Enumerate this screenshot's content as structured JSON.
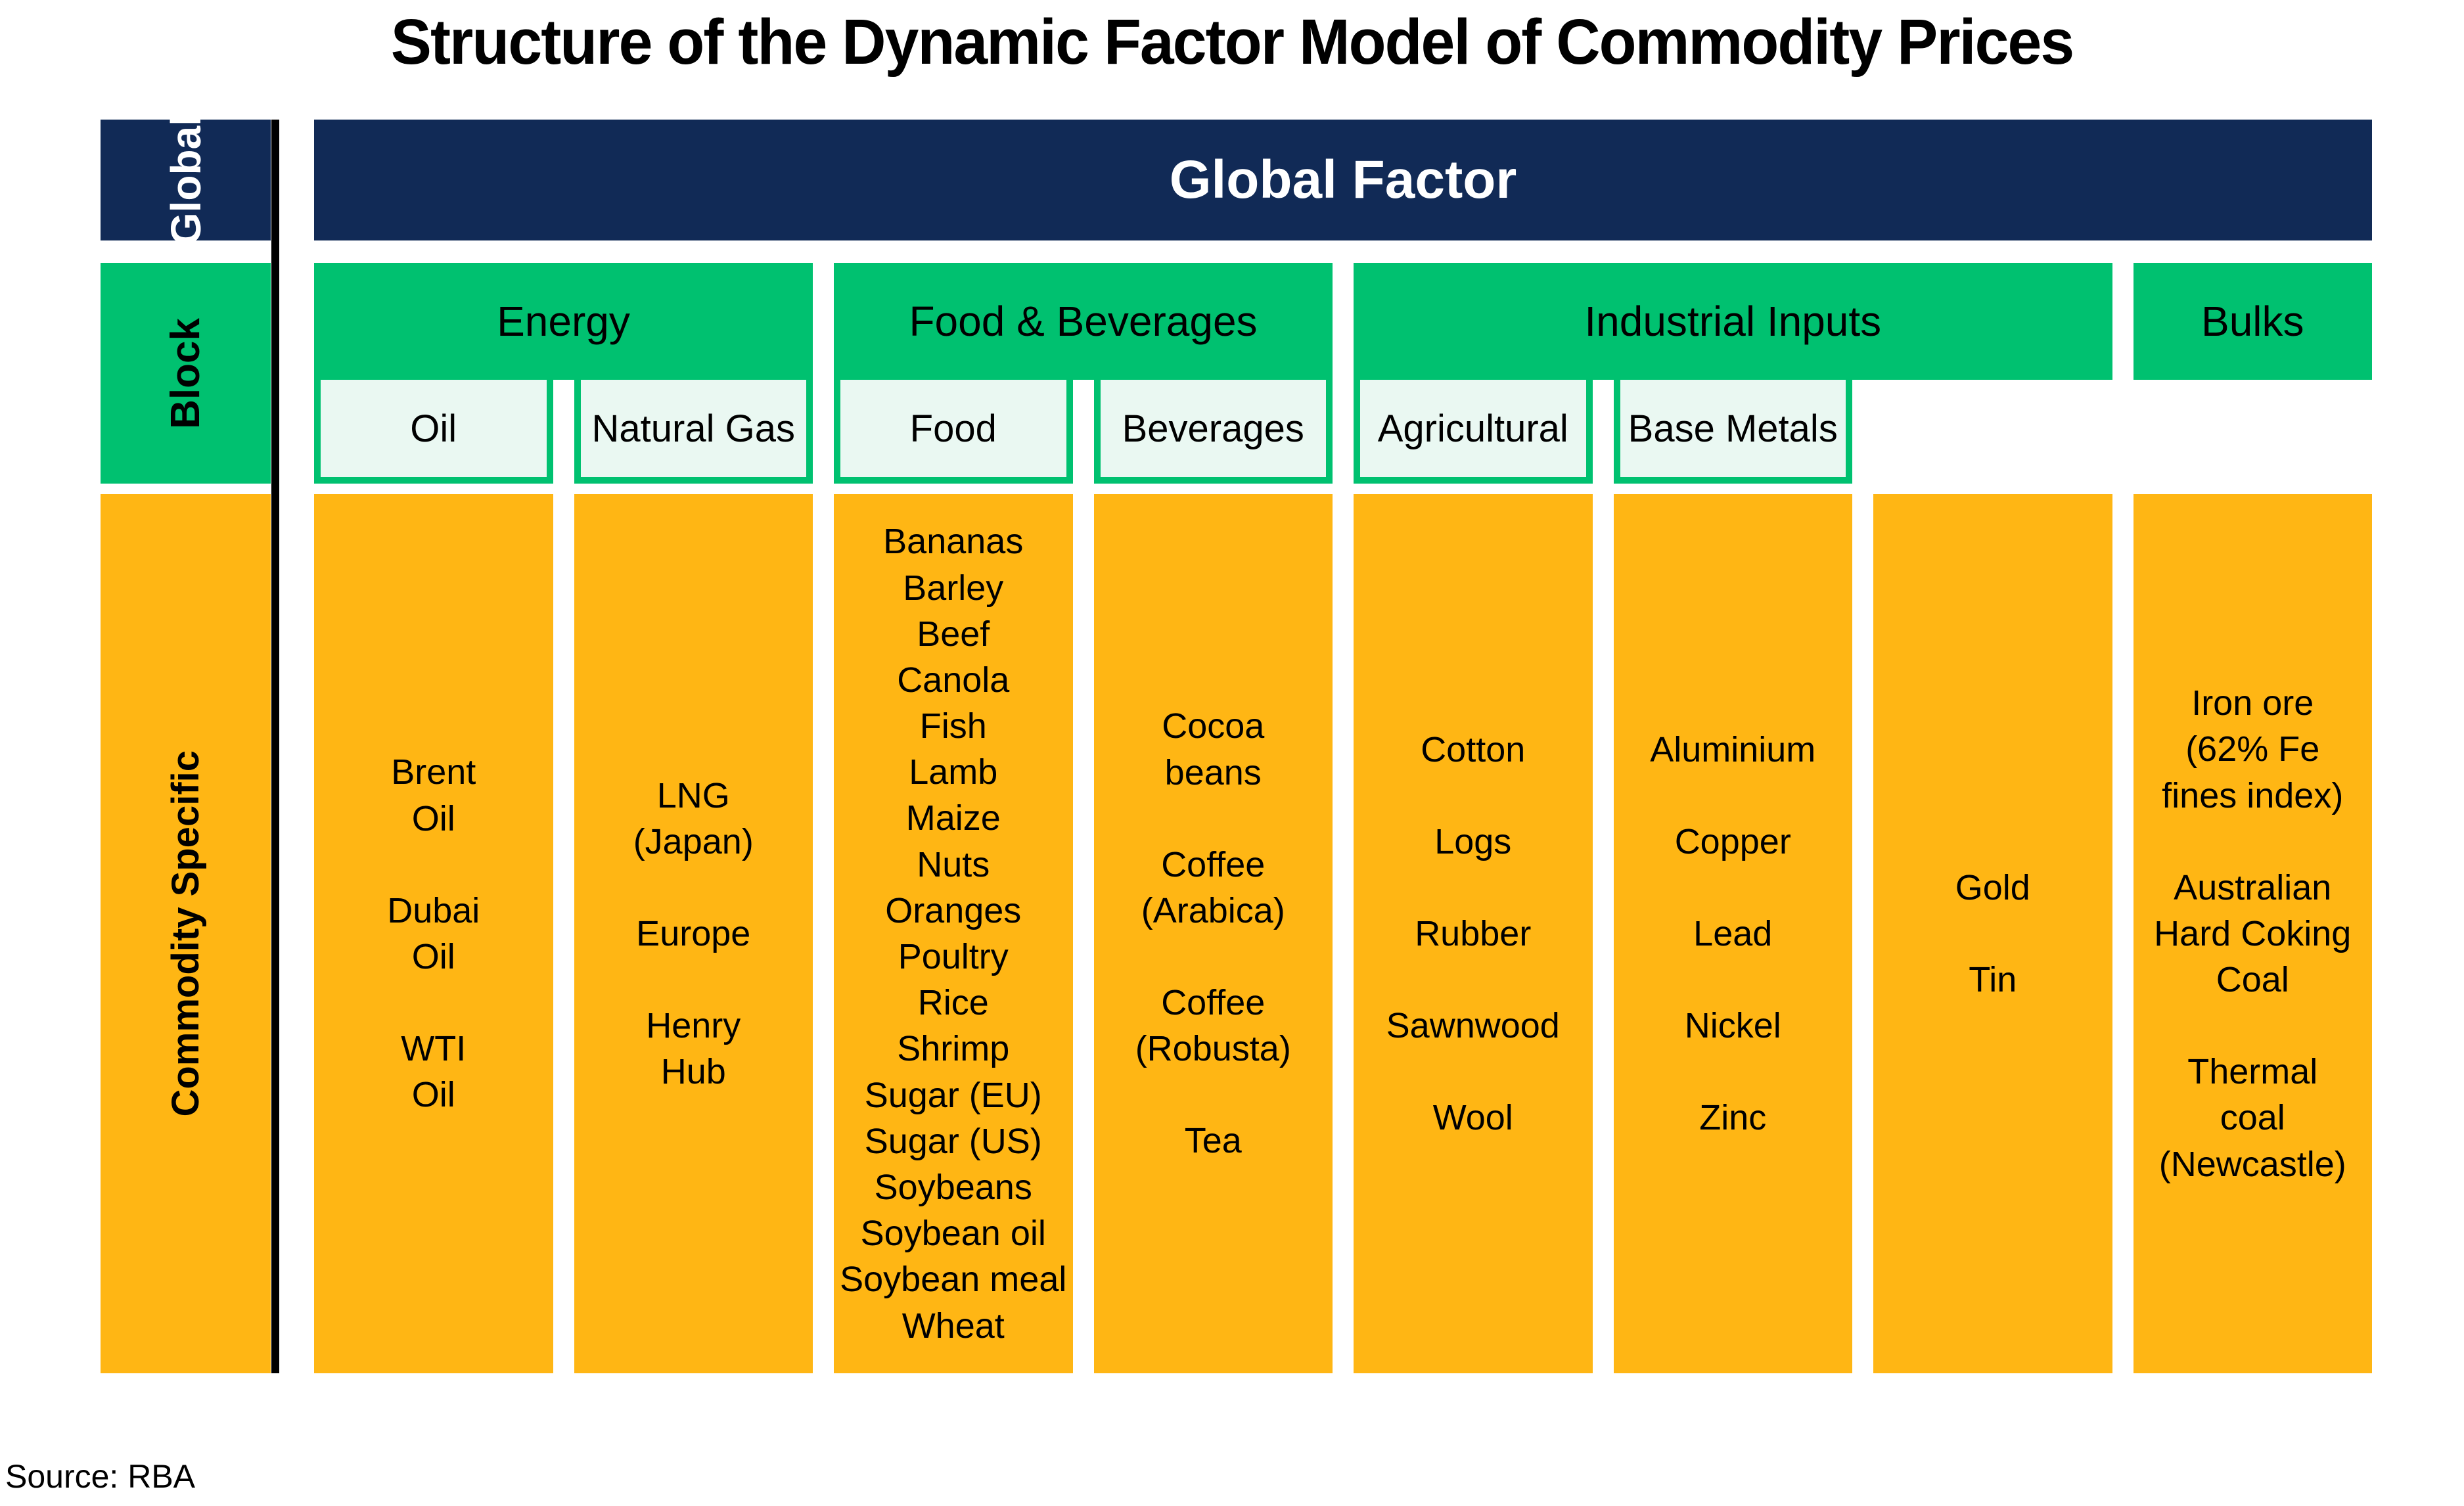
{
  "title": "Structure of the Dynamic Factor Model of Commodity Prices",
  "source_note": "Source: RBA",
  "colors": {
    "navy": "#112A56",
    "green": "#00C170",
    "light_green": "#EAF8F2",
    "orange": "#FFB614"
  },
  "row_labels": {
    "global": "Global",
    "block": "Block",
    "commodity_specific": "Commodity Specific"
  },
  "global_factor": {
    "label": "Global Factor"
  },
  "blocks": [
    {
      "label": "Energy",
      "span": 2
    },
    {
      "label": "Food & Beverages",
      "span": 2
    },
    {
      "label": "Industrial Inputs",
      "span": 3
    },
    {
      "label": "Bulks",
      "span": 1
    }
  ],
  "sub_blocks": [
    {
      "label": "Oil"
    },
    {
      "label": "Natural Gas"
    },
    {
      "label": "Food"
    },
    {
      "label": "Beverages"
    },
    {
      "label": "Agricultural"
    },
    {
      "label": "Base Metals"
    }
  ],
  "commodity_columns": [
    {
      "name": "oil",
      "spaced": true,
      "items": [
        "Brent\nOil",
        "Dubai\nOil",
        "WTI\nOil"
      ]
    },
    {
      "name": "natural-gas",
      "spaced": true,
      "items": [
        "LNG\n(Japan)",
        "Europe",
        "Henry\nHub"
      ]
    },
    {
      "name": "food",
      "spaced": false,
      "items": [
        "Bananas",
        "Barley",
        "Beef",
        "Canola",
        "Fish",
        "Lamb",
        "Maize",
        "Nuts",
        "Oranges",
        "Poultry",
        "Rice",
        "Shrimp",
        "Sugar (EU)",
        "Sugar (US)",
        "Soybeans",
        "Soybean oil",
        "Soybean meal",
        "Wheat"
      ]
    },
    {
      "name": "beverages",
      "spaced": true,
      "items": [
        "Cocoa\nbeans",
        "Coffee\n(Arabica)",
        "Coffee\n(Robusta)",
        "Tea"
      ]
    },
    {
      "name": "agricultural",
      "spaced": true,
      "items": [
        "Cotton",
        "Logs",
        "Rubber",
        "Sawnwood",
        "Wool"
      ]
    },
    {
      "name": "base-metals",
      "spaced": true,
      "items": [
        "Aluminium",
        "Copper",
        "Lead",
        "Nickel",
        "Zinc"
      ]
    },
    {
      "name": "gold-tin",
      "spaced": true,
      "items": [
        "Gold",
        "Tin"
      ]
    },
    {
      "name": "bulks",
      "spaced": true,
      "items": [
        "Iron ore\n(62% Fe\nfines index)",
        "Australian\nHard Coking\nCoal",
        "Thermal\ncoal\n(Newcastle)"
      ]
    }
  ]
}
